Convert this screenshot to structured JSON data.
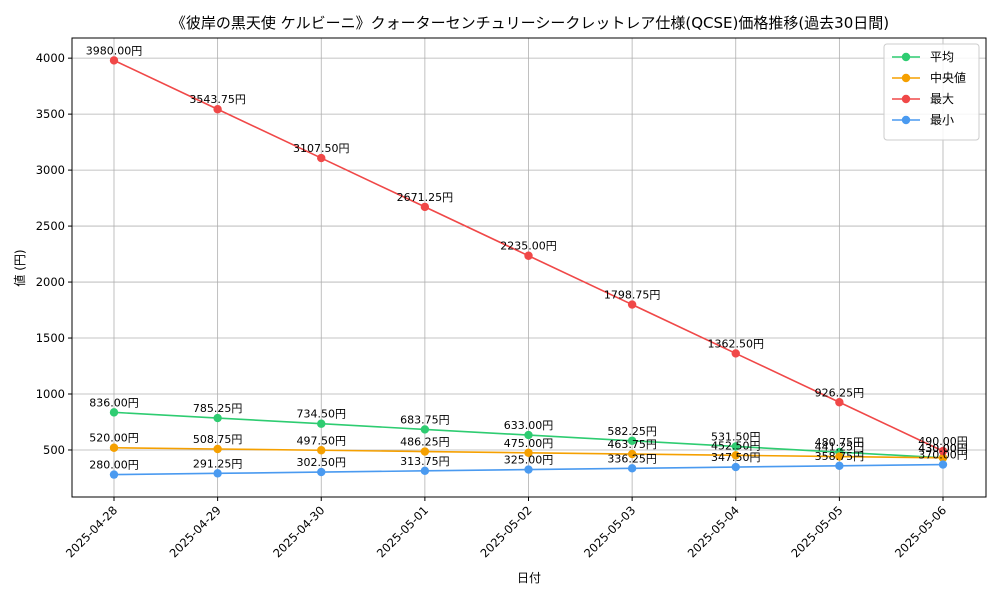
{
  "chart_data": {
    "type": "line",
    "title": "《彼岸の黒天使 ケルビーニ》クォーターセンチュリーシークレットレア仕様(QCSE)価格推移(過去30日間)",
    "xlabel": "日付",
    "ylabel": "値 (円)",
    "categories": [
      "2025-04-28",
      "2025-04-29",
      "2025-04-30",
      "2025-05-01",
      "2025-05-02",
      "2025-05-03",
      "2025-05-04",
      "2025-05-05",
      "2025-05-06"
    ],
    "y_ticks": [
      500,
      1000,
      1500,
      2000,
      2500,
      3000,
      3500,
      4000
    ],
    "ylim": [
      80,
      4180
    ],
    "grid": true,
    "legend_position": "top-right",
    "value_suffix": "円",
    "series": [
      {
        "name": "平均",
        "color": "#2ecc71",
        "values": [
          836.0,
          785.25,
          734.5,
          683.75,
          633.0,
          582.25,
          531.5,
          480.75,
          430.0
        ]
      },
      {
        "name": "中央値",
        "color": "#f5a000",
        "values": [
          520.0,
          508.75,
          497.5,
          486.25,
          475.0,
          463.75,
          452.5,
          441.25,
          430.0
        ]
      },
      {
        "name": "最大",
        "color": "#f04848",
        "values": [
          3980.0,
          3543.75,
          3107.5,
          2671.25,
          2235.0,
          1798.75,
          1362.5,
          926.25,
          490.0
        ]
      },
      {
        "name": "最小",
        "color": "#4a9af0",
        "values": [
          280.0,
          291.25,
          302.5,
          313.75,
          325.0,
          336.25,
          347.5,
          358.75,
          370.0
        ]
      }
    ]
  }
}
